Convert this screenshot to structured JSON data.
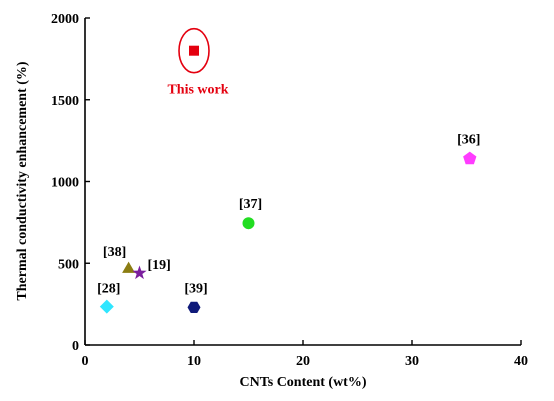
{
  "chart_data": {
    "type": "scatter",
    "title": "",
    "xlabel": "CNTs Content (wt%)",
    "ylabel": "Thermal conductivity enhancement (%)",
    "xlim": [
      0,
      40
    ],
    "ylim": [
      0,
      2000
    ],
    "x_ticks": [
      0,
      10,
      20,
      30,
      40
    ],
    "y_ticks": [
      0,
      500,
      1000,
      1500,
      2000
    ],
    "grid": false,
    "legend": "none",
    "points": [
      {
        "label": "This work",
        "x": 10,
        "y": 1800,
        "marker": "square",
        "color": "#e4000f",
        "highlight": true
      },
      {
        "label": "[36]",
        "x": 35.3,
        "y": 1140,
        "marker": "pentagon",
        "color": "#ff3cff"
      },
      {
        "label": "[37]",
        "x": 15,
        "y": 745,
        "marker": "circle",
        "color": "#22dd22"
      },
      {
        "label": "[38]",
        "x": 4,
        "y": 470,
        "marker": "triangle",
        "color": "#8b7d12"
      },
      {
        "label": "[19]",
        "x": 5,
        "y": 440,
        "marker": "star",
        "color": "#7b1f9e"
      },
      {
        "label": "[39]",
        "x": 10,
        "y": 230,
        "marker": "hexagon",
        "color": "#0f1a7a"
      },
      {
        "label": "[28]",
        "x": 2,
        "y": 235,
        "marker": "diamond",
        "color": "#2fe6ff"
      }
    ],
    "highlight_color": "#e4000f"
  }
}
